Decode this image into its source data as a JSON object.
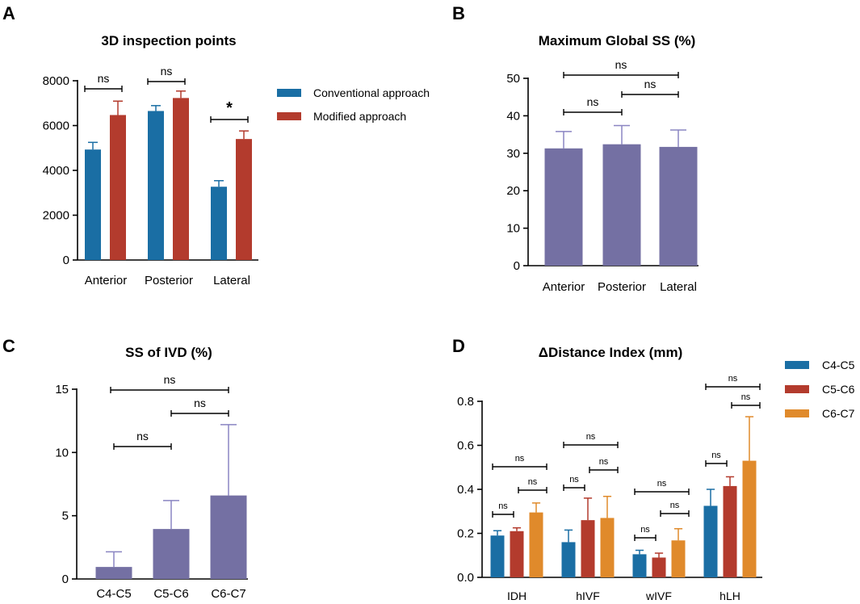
{
  "panel_letters": [
    "A",
    "B",
    "C",
    "D"
  ],
  "colors": {
    "blue": "#1a6ea4",
    "red": "#b33b2d",
    "orange": "#e08a2b",
    "purple": "#7470a3",
    "axis": "#000000",
    "error_purple": "#8a85c2"
  },
  "chart_data": [
    {
      "panel": "A",
      "type": "bar",
      "title": "3D inspection points",
      "categories": [
        "Anterior",
        "Posterior",
        "Lateral"
      ],
      "series": [
        {
          "name": "Conventional approach",
          "color": "#1a6ea4",
          "values": [
            4930,
            6650,
            3270
          ],
          "errors": [
            320,
            240,
            270
          ]
        },
        {
          "name": "Modified approach",
          "color": "#b33b2d",
          "values": [
            6470,
            7230,
            5400
          ],
          "errors": [
            620,
            310,
            360
          ]
        }
      ],
      "ylim": [
        0,
        8000
      ],
      "yticks": [
        0,
        2000,
        4000,
        6000,
        8000
      ],
      "ytick_labels": [
        "0",
        "2000",
        "4000",
        "6000",
        "8000"
      ],
      "xlabel": "",
      "ylabel": "",
      "legend_position": "right",
      "significance": [
        {
          "category": 0,
          "label": "ns"
        },
        {
          "category": 1,
          "label": "ns"
        },
        {
          "category": 2,
          "label": "*"
        }
      ]
    },
    {
      "panel": "B",
      "type": "bar",
      "title": "Maximum Global  SS (%)",
      "categories": [
        "Anterior",
        "Posterior",
        "Lateral"
      ],
      "values": [
        31.3,
        32.4,
        31.7
      ],
      "errors": [
        4.5,
        5.0,
        4.5
      ],
      "ylim": [
        0,
        50
      ],
      "yticks": [
        0,
        10,
        20,
        30,
        40,
        50
      ],
      "ytick_labels": [
        "0",
        "10",
        "20",
        "30",
        "40",
        "50"
      ],
      "xlabel": "",
      "ylabel": "",
      "significance": [
        {
          "from": 0,
          "to": 2,
          "label": "ns"
        },
        {
          "from": 1,
          "to": 2,
          "label": "ns"
        },
        {
          "from": 0,
          "to": 1,
          "label": "ns"
        }
      ]
    },
    {
      "panel": "C",
      "type": "bar",
      "title": "SS of IVD (%)",
      "categories": [
        "C4-C5",
        "C5-C6",
        "C6-C7"
      ],
      "values": [
        0.95,
        3.95,
        6.6
      ],
      "errors": [
        1.2,
        2.25,
        5.6
      ],
      "ylim": [
        0,
        15
      ],
      "yticks": [
        0,
        5,
        10,
        15
      ],
      "ytick_labels": [
        "0",
        "5",
        "10",
        "15"
      ],
      "xlabel": "",
      "ylabel": "",
      "significance": [
        {
          "from": 0,
          "to": 2,
          "label": "ns"
        },
        {
          "from": 1,
          "to": 2,
          "label": "ns"
        },
        {
          "from": 0,
          "to": 1,
          "label": "ns"
        }
      ]
    },
    {
      "panel": "D",
      "type": "bar",
      "title": "ΔDistance Index (mm)",
      "categories": [
        "IDH",
        "hIVF",
        "wIVF",
        "hLH"
      ],
      "series": [
        {
          "name": "C4-C5",
          "color": "#1a6ea4",
          "values": [
            0.19,
            0.16,
            0.105,
            0.325
          ],
          "errors": [
            0.022,
            0.055,
            0.018,
            0.075
          ]
        },
        {
          "name": "C5-C6",
          "color": "#b33b2d",
          "values": [
            0.21,
            0.26,
            0.09,
            0.415
          ],
          "errors": [
            0.015,
            0.1,
            0.02,
            0.042
          ]
        },
        {
          "name": "C6-C7",
          "color": "#e08a2b",
          "values": [
            0.295,
            0.27,
            0.168,
            0.53
          ],
          "errors": [
            0.043,
            0.098,
            0.053,
            0.2
          ]
        }
      ],
      "ylim": [
        0,
        0.8
      ],
      "yticks": [
        0,
        0.2,
        0.4,
        0.6,
        0.8
      ],
      "ytick_labels": [
        "0.0",
        "0.2",
        "0.4",
        "0.6",
        "0.8"
      ],
      "xlabel": "",
      "ylabel": "",
      "legend_position": "top-right",
      "significance_label": "ns"
    }
  ]
}
